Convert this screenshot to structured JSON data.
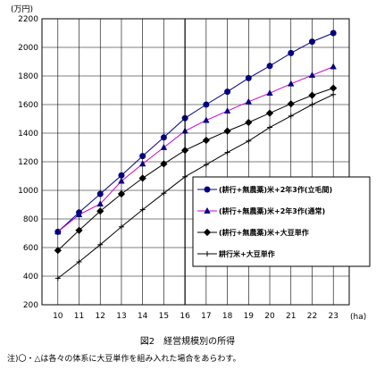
{
  "chart_data": {
    "type": "line",
    "title": "",
    "ylabel": "(万円)",
    "xlabel": "(ha)",
    "x": [
      10,
      11,
      12,
      13,
      14,
      15,
      16,
      17,
      18,
      19,
      20,
      21,
      22,
      23
    ],
    "xlim": [
      9.25,
      23.75
    ],
    "ylim": [
      200,
      2200
    ],
    "yticks": [
      200,
      400,
      600,
      800,
      1000,
      1200,
      1400,
      1600,
      1800,
      2000,
      2200
    ],
    "grid": true,
    "divider_x": 16,
    "legend_position": "right",
    "series": [
      {
        "name": "(耕行+無農薬)米+2年3作(立毛間)",
        "marker": "circle",
        "color": "#000080",
        "x": [
          10,
          11,
          12,
          13,
          14,
          15,
          16,
          17,
          18,
          19,
          20,
          21,
          22,
          23
        ],
        "values": [
          710,
          845,
          975,
          1105,
          1240,
          1370,
          1505,
          1600,
          1690,
          1785,
          1870,
          1960,
          2040,
          2100
        ]
      },
      {
        "name": "(耕行+無農薬)米+2年3作(通常)",
        "marker": "triangle",
        "color": "#cc00cc",
        "x": [
          10,
          11,
          12,
          13,
          14,
          15,
          16,
          17,
          18,
          19,
          20,
          21,
          22,
          23
        ],
        "values": [
          710,
          830,
          905,
          1065,
          1185,
          1300,
          1415,
          1490,
          1555,
          1620,
          1680,
          1745,
          1805,
          1865
        ]
      },
      {
        "name": "(耕行+無農薬)米+大豆単作",
        "marker": "diamond",
        "color": "#000000",
        "x": [
          10,
          11,
          12,
          13,
          14,
          15,
          16,
          17,
          18,
          19,
          20,
          21,
          22,
          23
        ],
        "values": [
          580,
          720,
          855,
          975,
          1085,
          1185,
          1280,
          1350,
          1415,
          1475,
          1540,
          1605,
          1665,
          1715
        ]
      },
      {
        "name": "耕行米+大豆単作",
        "marker": "plus",
        "color": "#000000",
        "x": [
          10,
          11,
          12,
          13,
          14,
          15,
          16,
          17,
          18,
          19,
          20,
          21,
          22,
          23
        ],
        "values": [
          385,
          500,
          620,
          745,
          865,
          980,
          1095,
          1180,
          1265,
          1345,
          1440,
          1520,
          1600,
          1670
        ]
      }
    ]
  },
  "caption": "図2　経営規模別の所得",
  "note": "注)〇・△は各々の体系に大豆単作を組み入れた場合をあらわす。"
}
